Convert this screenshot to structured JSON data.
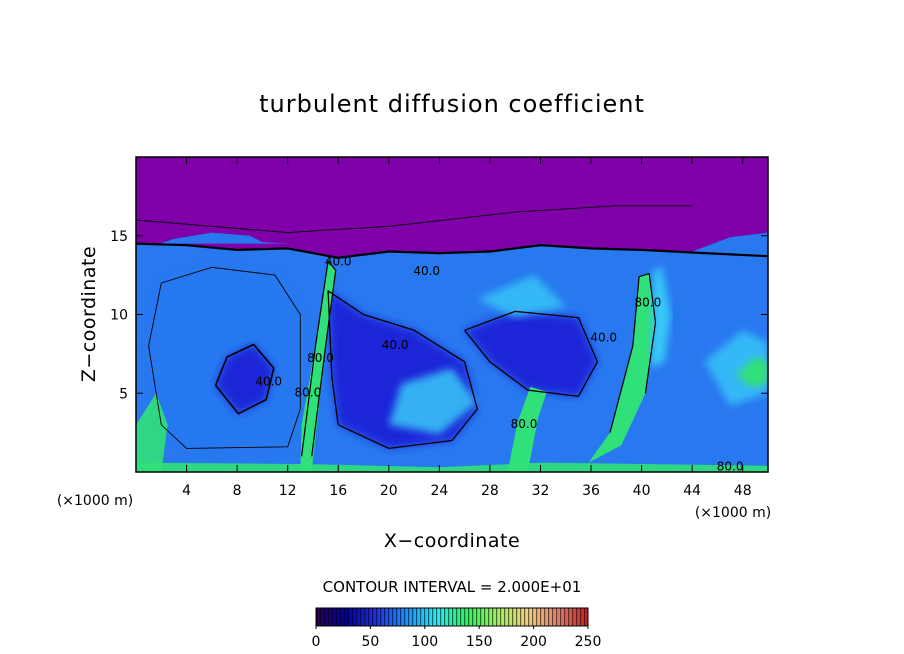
{
  "chart_data": {
    "type": "heatmap",
    "title": "turbulent diffusion coefficient",
    "xlabel": "X−coordinate",
    "ylabel": "Z−coordinate",
    "x_unit_left": "(×1000 m)",
    "x_unit_right": "(×1000 m)",
    "xlim": [
      0,
      50
    ],
    "ylim": [
      0,
      20
    ],
    "xticks": [
      4,
      8,
      12,
      16,
      20,
      24,
      28,
      32,
      36,
      40,
      44,
      48
    ],
    "yticks": [
      5,
      10,
      15
    ],
    "contour_interval_text": "CONTOUR INTERVAL = 2.000E+01",
    "contour_interval": 20,
    "contour_labels": [
      {
        "text": "40.0",
        "x": 10.5,
        "y": 5.5
      },
      {
        "text": "40.0",
        "x": 23.0,
        "y": 12.5
      },
      {
        "text": "40.0",
        "x": 20.5,
        "y": 7.8
      },
      {
        "text": "40.0",
        "x": 37.0,
        "y": 8.3
      },
      {
        "text": "40.0",
        "x": 16.0,
        "y": 13.1
      },
      {
        "text": "80.0",
        "x": 13.6,
        "y": 4.8
      },
      {
        "text": "80.0",
        "x": 14.6,
        "y": 7.0
      },
      {
        "text": "80.0",
        "x": 30.7,
        "y": 2.8
      },
      {
        "text": "80.0",
        "x": 40.5,
        "y": 10.5
      },
      {
        "text": "80.0",
        "x": 47.0,
        "y": 0.1
      }
    ],
    "colorbar": {
      "min": 0,
      "max": 250,
      "ticks": [
        0,
        50,
        100,
        150,
        200,
        250
      ],
      "colors": [
        "#2a0050",
        "#0000a0",
        "#2030e0",
        "#1a90ff",
        "#30e8f0",
        "#30f060",
        "#a0f060",
        "#f0d080",
        "#e08070",
        "#c02020"
      ]
    },
    "grid": false,
    "legend": "none",
    "background_color": "#7f00a8",
    "field_colors": {
      "deep_blue": "#1a28d8",
      "mid_blue": "#2878f0",
      "cyan": "#38c8f8",
      "green": "#30e078",
      "contour_line": "#000000"
    }
  }
}
